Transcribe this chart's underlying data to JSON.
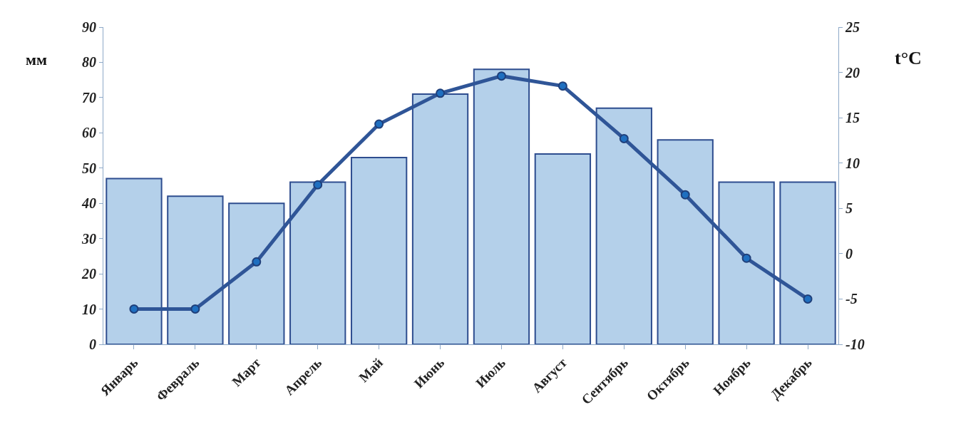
{
  "chart_data": {
    "type": "bar",
    "ylabel": "мм",
    "y2label": "t°C",
    "categories": [
      "Январь",
      "Февраль",
      "Март",
      "Апрель",
      "Май",
      "Июнь",
      "Июль",
      "Август",
      "Сентябрь",
      "Октябрь",
      "Ноябрь",
      "Декабрь"
    ],
    "series": [
      {
        "color": "#b4d0ea",
        "values": [
          47,
          42,
          40,
          46,
          53,
          71,
          78,
          54,
          67,
          58,
          46,
          46
        ]
      },
      {
        "type": "line",
        "axis": "y2",
        "color": "#2f5597",
        "values": [
          -6.1,
          -6.1,
          -0.9,
          7.6,
          14.3,
          17.7,
          19.6,
          18.5,
          12.7,
          6.5,
          -0.5,
          -5.0
        ]
      }
    ],
    "ylim": [
      0,
      90
    ],
    "yticks": [
      0,
      10,
      20,
      30,
      40,
      50,
      60,
      70,
      80,
      90
    ],
    "y2lim": [
      -10,
      25
    ],
    "y2ticks": [
      -10,
      -5,
      0,
      5,
      10,
      15,
      20,
      25
    ],
    "marker": "circle",
    "line_style": "solid"
  }
}
